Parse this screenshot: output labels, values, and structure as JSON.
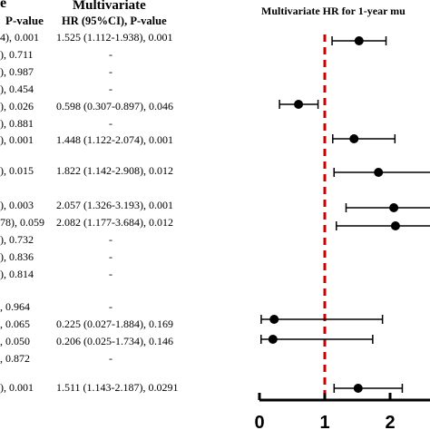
{
  "headers": {
    "uni_partial": "e",
    "uni_col": "P-value",
    "multi_title": "Multivariate",
    "multi_col": "HR (95%CI), P-value",
    "plot_title": "Multivariate HR for 1-year mu"
  },
  "rows": [
    {
      "left": "4), 0.001",
      "multi": "1.525 (1.112-1.938), 0.001"
    },
    {
      "left": "), 0.711",
      "multi": "-"
    },
    {
      "left": "), 0.987",
      "multi": "-"
    },
    {
      "left": "), 0.454",
      "multi": "-"
    },
    {
      "left": "), 0.026",
      "multi": "0.598 (0.307-0.897), 0.046"
    },
    {
      "left": "), 0.881",
      "multi": "-"
    },
    {
      "left": "), 0.001",
      "multi": "1.448 (1.122-2.074), 0.001"
    },
    {
      "left": "), 0.015",
      "multi": "1.822 (1.142-2.908), 0.012"
    },
    {
      "left": "), 0.003",
      "multi": "2.057 (1.326-3.193), 0.001"
    },
    {
      "left": "78), 0.059",
      "multi": "2.082 (1.177-3.684), 0.012"
    },
    {
      "left": "), 0.732",
      "multi": "-"
    },
    {
      "left": "), 0.836",
      "multi": "-"
    },
    {
      "left": "), 0.814",
      "multi": "-"
    },
    {
      "left": ", 0.964",
      "multi": "-"
    },
    {
      "left": ", 0.065",
      "multi": "0.225 (0.027-1.884), 0.169"
    },
    {
      "left": ", 0.050",
      "multi": "0.206 (0.025-1.734), 0.146"
    },
    {
      "left": ", 0.872",
      "multi": "-"
    },
    {
      "left": "), 0.001",
      "multi": "1.511 (1.143-2.187), 0.0291"
    }
  ],
  "chart_data": {
    "type": "scatter",
    "title": "Multivariate HR for 1-year mu",
    "reference_line": 1,
    "reference_color": "#cc0000",
    "marker_color": "#000000",
    "xlim": [
      0,
      2.5
    ],
    "ticks": [
      0,
      1,
      2
    ],
    "points": [
      {
        "hr": 1.525,
        "lo": 1.112,
        "hi": 1.938
      },
      {
        "hr": 0.598,
        "lo": 0.307,
        "hi": 0.897
      },
      {
        "hr": 1.448,
        "lo": 1.122,
        "hi": 2.074
      },
      {
        "hr": 1.822,
        "lo": 1.142,
        "hi": 2.908
      },
      {
        "hr": 2.057,
        "lo": 1.326,
        "hi": 3.193
      },
      {
        "hr": 2.082,
        "lo": 1.177,
        "hi": 3.684
      },
      {
        "hr": 0.225,
        "lo": 0.027,
        "hi": 1.884
      },
      {
        "hr": 0.206,
        "lo": 0.025,
        "hi": 1.734
      },
      {
        "hr": 1.511,
        "lo": 1.143,
        "hi": 2.187
      }
    ]
  }
}
